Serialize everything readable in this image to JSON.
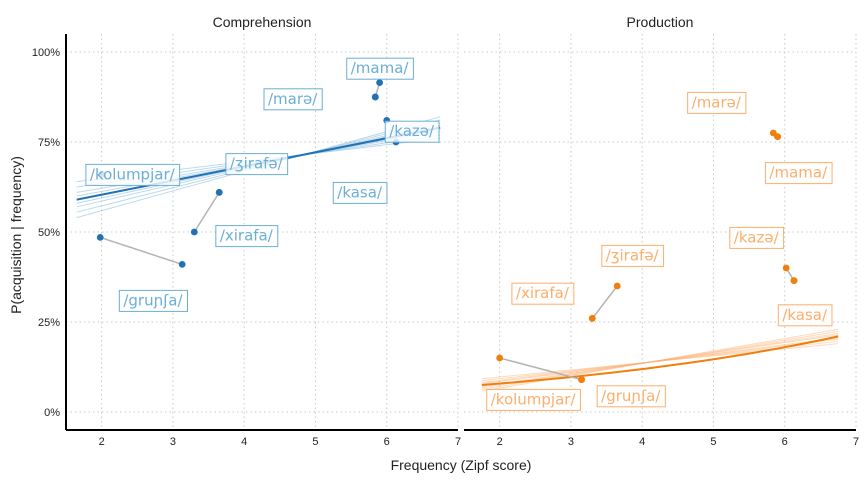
{
  "chart_data": {
    "type": "scatter",
    "xlabel": "Frequency (Zipf score)",
    "ylabel": "P(acquisition | frequency)",
    "xlim": [
      1.5,
      7
    ],
    "ylim": [
      -0.05,
      1.05
    ],
    "x_ticks": [
      2,
      3,
      4,
      5,
      6,
      7
    ],
    "x_tick_labels": [
      "2",
      "3",
      "4",
      "5",
      "6",
      "7"
    ],
    "y_ticks": [
      0,
      0.25,
      0.5,
      0.75,
      1
    ],
    "y_tick_labels": [
      "0%",
      "25%",
      "50%",
      "75%",
      "100%"
    ],
    "grid": true,
    "panels": [
      {
        "title": "Comprehension",
        "color": "#2171b5",
        "label_color": "#6baed6",
        "trend": {
          "x0": 1.65,
          "y0": 0.59,
          "x1": 6.75,
          "y1": 0.79
        },
        "points": [
          {
            "word": "/mama/",
            "x1": 5.84,
            "y1": 0.875,
            "x2": 5.9,
            "y2": 0.915,
            "lx": 5.9,
            "ly": 0.955
          },
          {
            "word": "/marə/",
            "x1": 5.84,
            "y1": 0.875,
            "x2": 5.84,
            "y2": 0.875,
            "lx": 4.68,
            "ly": 0.87
          },
          {
            "word": "/kazə/",
            "x1": 6.0,
            "y1": 0.81,
            "x2": 6.0,
            "y2": 0.81,
            "lx": 6.35,
            "ly": 0.78
          },
          {
            "word": "/kasa/",
            "x1": 6.13,
            "y1": 0.75,
            "x2": 6.13,
            "y2": 0.75,
            "lx": 5.62,
            "ly": 0.61
          },
          {
            "word": "/ʒirafə/",
            "x1": 3.65,
            "y1": 0.61,
            "x2": 3.65,
            "y2": 0.61,
            "lx": 4.17,
            "ly": 0.69
          },
          {
            "word": "/kolumpjar/",
            "x1": 2.0,
            "y1": 0.66,
            "x2": 2.0,
            "y2": 0.66,
            "lx": 2.43,
            "ly": 0.66
          },
          {
            "word": "/xirafa/",
            "x1": 3.3,
            "y1": 0.5,
            "x2": 3.65,
            "y2": 0.61,
            "lx": 4.03,
            "ly": 0.49
          },
          {
            "word": "/gruɲʃa/",
            "x1": 1.98,
            "y1": 0.485,
            "x2": 3.13,
            "y2": 0.41,
            "lx": 2.72,
            "ly": 0.31
          }
        ]
      },
      {
        "title": "Production",
        "color": "#f07f0e",
        "label_color": "#fdae6b",
        "trend": {
          "x0": 1.75,
          "y0": 0.075,
          "x1": 6.75,
          "y1": 0.21
        },
        "points": [
          {
            "word": "/marə/",
            "x1": 5.84,
            "y1": 0.775,
            "x2": 5.9,
            "y2": 0.765,
            "lx": 5.04,
            "ly": 0.86
          },
          {
            "word": "/mama/",
            "x1": 5.9,
            "y1": 0.765,
            "x2": 5.9,
            "y2": 0.765,
            "lx": 6.19,
            "ly": 0.665
          },
          {
            "word": "/kazə/",
            "x1": 6.02,
            "y1": 0.4,
            "x2": 6.13,
            "y2": 0.365,
            "lx": 5.6,
            "ly": 0.485
          },
          {
            "word": "/kasa/",
            "x1": 6.13,
            "y1": 0.365,
            "x2": 6.13,
            "y2": 0.365,
            "lx": 6.28,
            "ly": 0.27
          },
          {
            "word": "/ʒirafə/",
            "x1": 3.65,
            "y1": 0.35,
            "x2": 3.3,
            "y2": 0.26,
            "lx": 3.86,
            "ly": 0.435
          },
          {
            "word": "/xirafa/",
            "x1": 3.3,
            "y1": 0.26,
            "x2": 3.3,
            "y2": 0.26,
            "lx": 2.6,
            "ly": 0.33
          },
          {
            "word": "/kolumpjar/",
            "x1": 2.0,
            "y1": 0.15,
            "x2": 3.15,
            "y2": 0.09,
            "lx": 2.47,
            "ly": 0.035
          },
          {
            "word": "/gruɲʃa/",
            "x1": 3.15,
            "y1": 0.09,
            "x2": 3.15,
            "y2": 0.09,
            "lx": 3.84,
            "ly": 0.045
          }
        ]
      }
    ]
  }
}
